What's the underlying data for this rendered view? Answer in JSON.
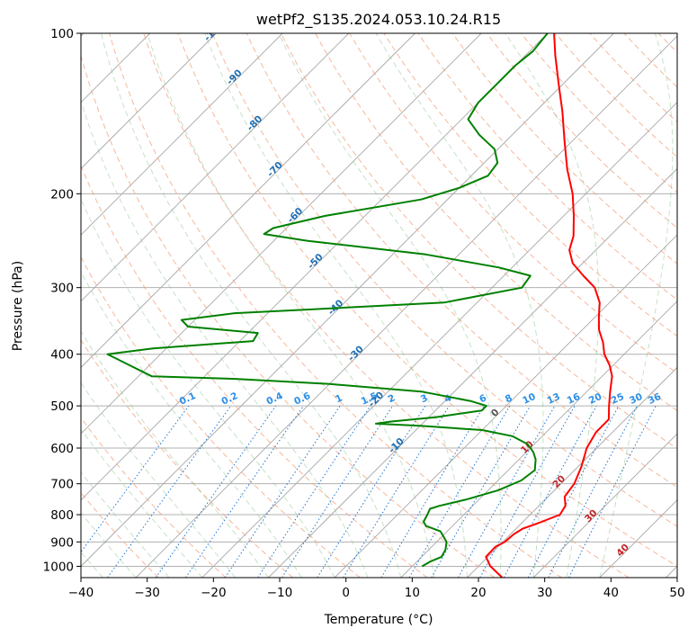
{
  "chart_data": {
    "type": "line",
    "title": "wetPf2_S135.2024.053.10.24.R15",
    "xlabel": "Temperature (°C)",
    "ylabel": "Pressure (hPa)",
    "xlim": [
      -40,
      50
    ],
    "ylim": [
      1050,
      100
    ],
    "y_scale": "log",
    "x_ticks": [
      -40,
      -30,
      -20,
      -10,
      0,
      10,
      20,
      30,
      40,
      50
    ],
    "x_tick_labels": [
      "−40",
      "−30",
      "−20",
      "−10",
      "0",
      "10",
      "20",
      "30",
      "40",
      "50"
    ],
    "y_ticks": [
      100,
      200,
      300,
      400,
      500,
      600,
      700,
      800,
      900,
      1000
    ],
    "y_tick_labels": [
      "100",
      "200",
      "300",
      "400",
      "500",
      "600",
      "700",
      "800",
      "900",
      "1000"
    ],
    "grid": true,
    "skew": "skew-T",
    "series": [
      {
        "color": "#ff0000",
        "points": [
          [
            1050,
            25.3
          ],
          [
            1000,
            21.8
          ],
          [
            960,
            19.7
          ],
          [
            920,
            19.6
          ],
          [
            900,
            20.3
          ],
          [
            870,
            20.5
          ],
          [
            850,
            21.0
          ],
          [
            830,
            22.5
          ],
          [
            800,
            24.5
          ],
          [
            770,
            24.0
          ],
          [
            740,
            22.5
          ],
          [
            700,
            22.0
          ],
          [
            650,
            20.5
          ],
          [
            600,
            18.5
          ],
          [
            560,
            17.5
          ],
          [
            530,
            17.5
          ],
          [
            500,
            15.5
          ],
          [
            470,
            13.5
          ],
          [
            440,
            11.5
          ],
          [
            420,
            9.5
          ],
          [
            400,
            7.0
          ],
          [
            380,
            5.0
          ],
          [
            360,
            2.5
          ],
          [
            340,
            0.5
          ],
          [
            320,
            -1.5
          ],
          [
            300,
            -4.5
          ],
          [
            285,
            -8.0
          ],
          [
            270,
            -11.5
          ],
          [
            255,
            -14.0
          ],
          [
            240,
            -15.5
          ],
          [
            220,
            -18.5
          ],
          [
            200,
            -22.0
          ],
          [
            180,
            -26.5
          ],
          [
            160,
            -31.0
          ],
          [
            140,
            -36.0
          ],
          [
            125,
            -40.5
          ],
          [
            110,
            -45.5
          ],
          [
            100,
            -49.0
          ]
        ]
      },
      {
        "color": "#008000",
        "points": [
          [
            1000,
            11.5
          ],
          [
            980,
            12.0
          ],
          [
            960,
            13.0
          ],
          [
            930,
            12.5
          ],
          [
            900,
            11.5
          ],
          [
            860,
            9.0
          ],
          [
            840,
            6.0
          ],
          [
            825,
            5.0
          ],
          [
            800,
            4.5
          ],
          [
            780,
            4.0
          ],
          [
            770,
            5.0
          ],
          [
            750,
            8.0
          ],
          [
            720,
            11.5
          ],
          [
            690,
            13.5
          ],
          [
            660,
            14.0
          ],
          [
            630,
            12.5
          ],
          [
            610,
            11.0
          ],
          [
            590,
            9.0
          ],
          [
            570,
            5.5
          ],
          [
            555,
            0.0
          ],
          [
            545,
            -10.0
          ],
          [
            540,
            -17.0
          ],
          [
            535,
            -15.0
          ],
          [
            525,
            -9.0
          ],
          [
            510,
            -3.0
          ],
          [
            500,
            -3.0
          ],
          [
            490,
            -6.0
          ],
          [
            470,
            -15.0
          ],
          [
            455,
            -30.0
          ],
          [
            445,
            -45.0
          ],
          [
            440,
            -58.0
          ],
          [
            400,
            -68.0
          ],
          [
            390,
            -62.0
          ],
          [
            378,
            -48.0
          ],
          [
            365,
            -48.5
          ],
          [
            355,
            -60.0
          ],
          [
            345,
            -62.0
          ],
          [
            335,
            -55.0
          ],
          [
            330,
            -45.0
          ],
          [
            320,
            -25.0
          ],
          [
            300,
            -15.5
          ],
          [
            285,
            -16.0
          ],
          [
            275,
            -22.0
          ],
          [
            260,
            -35.0
          ],
          [
            245,
            -55.0
          ],
          [
            238,
            -62.5
          ],
          [
            232,
            -62.0
          ],
          [
            220,
            -56.0
          ],
          [
            205,
            -44.0
          ],
          [
            195,
            -40.0
          ],
          [
            185,
            -37.5
          ],
          [
            175,
            -38.0
          ],
          [
            165,
            -40.5
          ],
          [
            155,
            -45.0
          ],
          [
            145,
            -49.0
          ],
          [
            135,
            -50.0
          ],
          [
            125,
            -50.0
          ],
          [
            115,
            -50.0
          ],
          [
            108,
            -49.5
          ],
          [
            100,
            -50.0
          ]
        ]
      }
    ],
    "dry_adiabat_labels": [
      "-100",
      "-90",
      "-80",
      "-70",
      "-60",
      "-50",
      "-40",
      "-30",
      "-20",
      "-10",
      "0",
      "10",
      "20",
      "30",
      "40"
    ],
    "mixing_ratio_labels": [
      "0.1",
      "0.2",
      "0.4",
      "0.6",
      "1",
      "1.5",
      "2",
      "3",
      "4",
      "6",
      "8",
      "10",
      "13",
      "16",
      "20",
      "25",
      "30",
      "36"
    ]
  }
}
